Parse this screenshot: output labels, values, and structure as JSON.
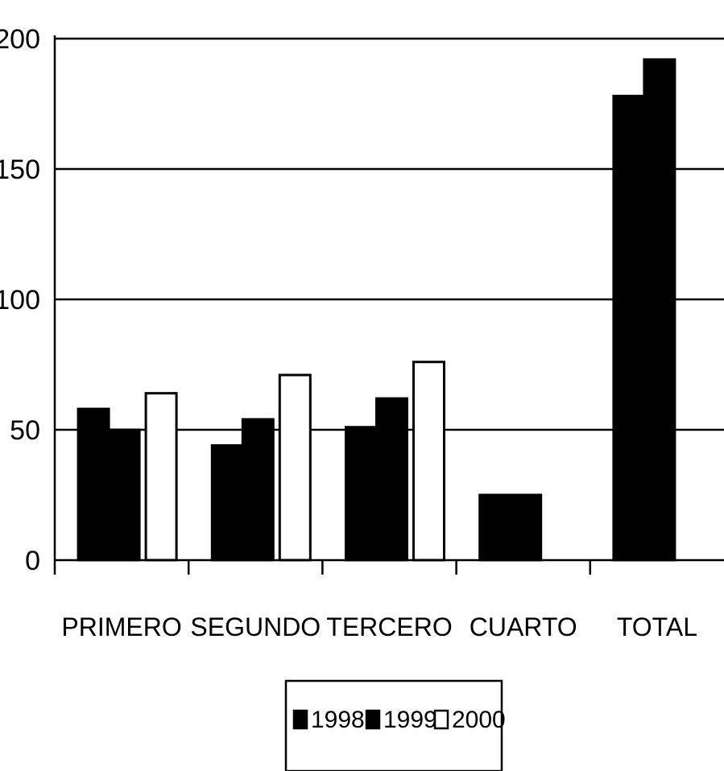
{
  "chart_data": {
    "type": "bar",
    "title": "",
    "xlabel": "",
    "ylabel": "",
    "ylim": [
      0,
      200
    ],
    "yticks": [
      0,
      50,
      100,
      150,
      200
    ],
    "grid": "horizontal",
    "legend_position": "bottom",
    "categories": [
      "PRIMERO",
      "SEGUNDO",
      "TERCERO",
      "CUARTO",
      "TOTAL"
    ],
    "series": [
      {
        "name": "1998",
        "color": "#000000",
        "values": [
          58,
          44,
          51,
          25,
          178
        ]
      },
      {
        "name": "1999",
        "color": "#000000",
        "values": [
          50,
          54,
          62,
          25,
          192
        ]
      },
      {
        "name": "2000",
        "color": "#ffffff",
        "values": [
          64,
          71,
          76,
          null,
          null
        ]
      }
    ]
  }
}
